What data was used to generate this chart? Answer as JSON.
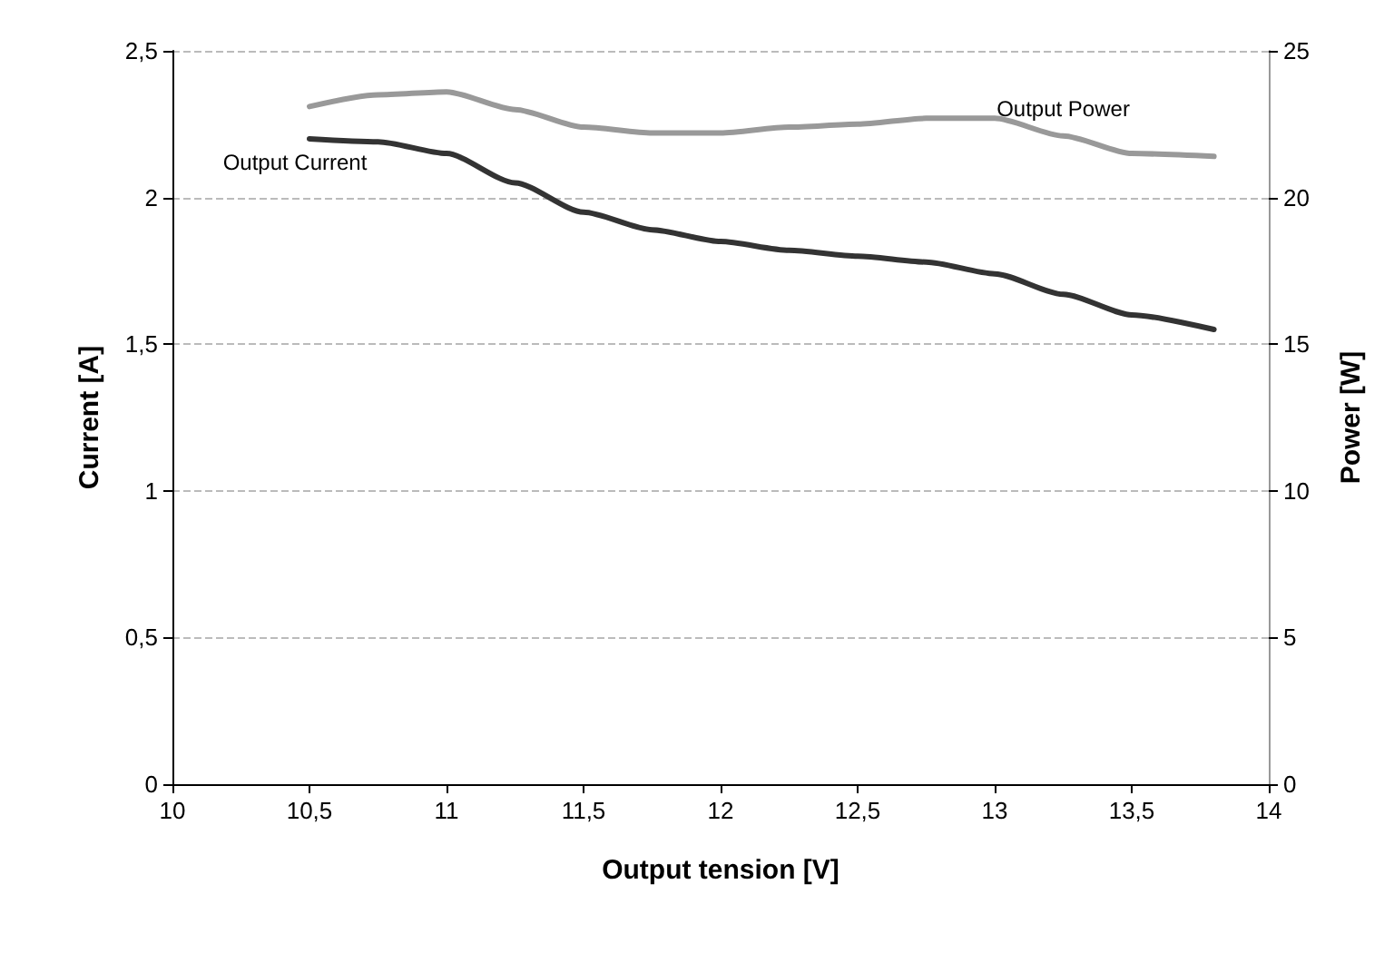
{
  "chart_data": {
    "type": "line",
    "xlabel": "Output tension [V]",
    "ylabel": "Current [A]",
    "y2label": "Power [W]",
    "x": [
      10.5,
      10.75,
      11,
      11.25,
      11.5,
      11.75,
      12,
      12.25,
      12.5,
      12.75,
      13,
      13.25,
      13.5,
      13.8
    ],
    "series": [
      {
        "name": "Output Current",
        "color": "#333333",
        "values": [
          2.2,
          2.19,
          2.15,
          2.05,
          1.95,
          1.89,
          1.85,
          1.82,
          1.8,
          1.78,
          1.74,
          1.67,
          1.6,
          1.55
        ]
      },
      {
        "name": "Output Power",
        "color": "#999999",
        "axis": "y2",
        "values": [
          23.1,
          23.5,
          23.6,
          23.0,
          22.4,
          22.2,
          22.2,
          22.4,
          22.5,
          22.7,
          22.7,
          22.1,
          21.5,
          21.4
        ]
      }
    ],
    "xlim": [
      10,
      14
    ],
    "xticks": [
      10,
      {
        "value": 10.5,
        "label": "10,5"
      },
      11,
      {
        "value": 11.5,
        "label": "11,5"
      },
      12,
      {
        "value": 12.5,
        "label": "12,5"
      },
      13,
      {
        "value": 13.5,
        "label": "13,5"
      },
      14
    ],
    "ylim": [
      0,
      2.5
    ],
    "yticks": [
      0,
      {
        "value": 0.5,
        "label": "0,5"
      },
      1,
      {
        "value": 1.5,
        "label": "1,5"
      },
      2,
      {
        "value": 2.5,
        "label": "2,5"
      }
    ],
    "y2lim": [
      0,
      25
    ],
    "y2ticks": [
      0,
      5,
      10,
      15,
      20,
      25
    ],
    "grid": "y",
    "legend": false,
    "marker": "none",
    "line_style": "solid"
  }
}
